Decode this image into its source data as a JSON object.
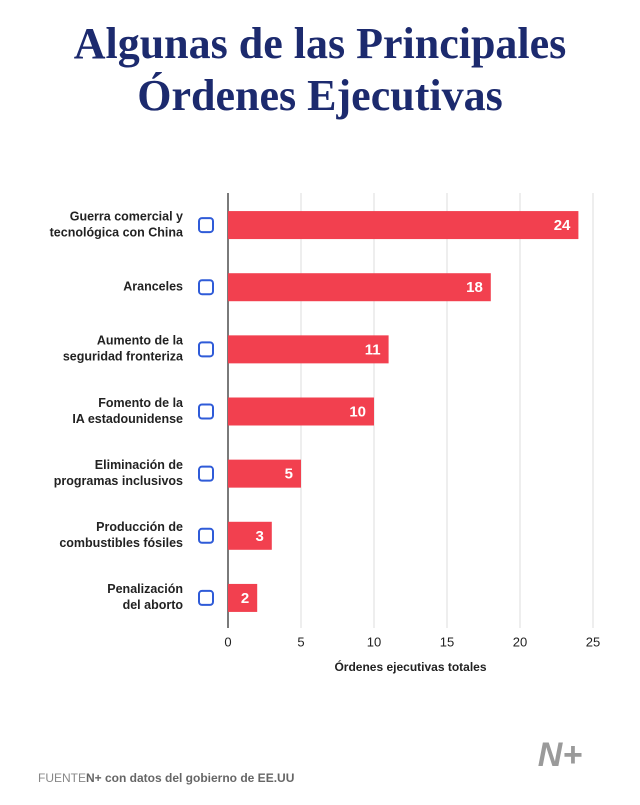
{
  "chart_data": {
    "type": "hbar",
    "title": [
      "Algunas de las Principales",
      "Órdenes Ejecutivas"
    ],
    "categories": [
      [
        "Guerra comercial y",
        "tecnológica con China"
      ],
      [
        "Aranceles"
      ],
      [
        "Aumento de la",
        "seguridad fronteriza"
      ],
      [
        "Fomento de la",
        "IA estadounidense"
      ],
      [
        "Eliminación de",
        "programas inclusivos"
      ],
      [
        "Producción de",
        "combustibles fósiles"
      ],
      [
        "Penalización",
        "del aborto"
      ]
    ],
    "values": [
      24,
      18,
      11,
      10,
      5,
      3,
      2
    ],
    "color": "#f2404f",
    "xlim": [
      0,
      25
    ],
    "xticks": [
      0,
      5,
      10,
      15,
      20,
      25
    ],
    "grid": true,
    "xlabel": "Órdenes ejecutivas totales"
  },
  "footer": {
    "source_label": "FUENTE",
    "source_text": "N+ con datos del gobierno de EE.UU",
    "logo": "N+"
  }
}
